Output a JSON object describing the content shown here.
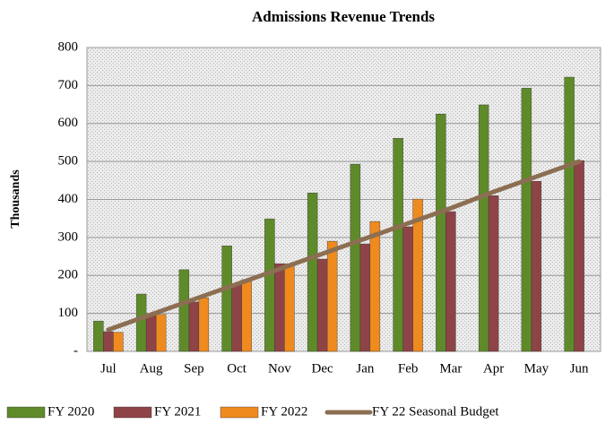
{
  "chart_data": {
    "type": "bar",
    "title": "Admissions Revenue Trends",
    "ylabel": "Thousands",
    "categories": [
      "Jul",
      "Aug",
      "Sep",
      "Oct",
      "Nov",
      "Dec",
      "Jan",
      "Feb",
      "Mar",
      "Apr",
      "May",
      "Jun"
    ],
    "series": [
      {
        "name": "FY 2020",
        "color": "#5f8a2a",
        "type": "bar",
        "values": [
          80,
          151,
          215,
          278,
          349,
          417,
          493,
          561,
          625,
          649,
          693,
          722
        ]
      },
      {
        "name": "FY 2021",
        "color": "#8e4446",
        "type": "bar",
        "values": [
          52,
          94,
          130,
          177,
          231,
          243,
          283,
          328,
          368,
          410,
          448,
          502
        ]
      },
      {
        "name": "FY 2022",
        "color": "#ef8a1e",
        "type": "bar",
        "values": [
          50,
          97,
          141,
          189,
          231,
          290,
          342,
          401,
          null,
          null,
          null,
          null
        ]
      },
      {
        "name": "FY 22 Seasonal Budget",
        "color": "#8c6e52",
        "type": "line",
        "values": [
          57,
          97,
          137,
          177,
          217,
          257,
          297,
          337,
          377,
          420,
          460,
          500
        ]
      }
    ],
    "ylim": [
      0,
      800
    ],
    "yticks": [
      {
        "value": 0,
        "label": "-"
      },
      100,
      200,
      300,
      400,
      500,
      600,
      700,
      800
    ],
    "grid": true,
    "legend": "bottom"
  }
}
